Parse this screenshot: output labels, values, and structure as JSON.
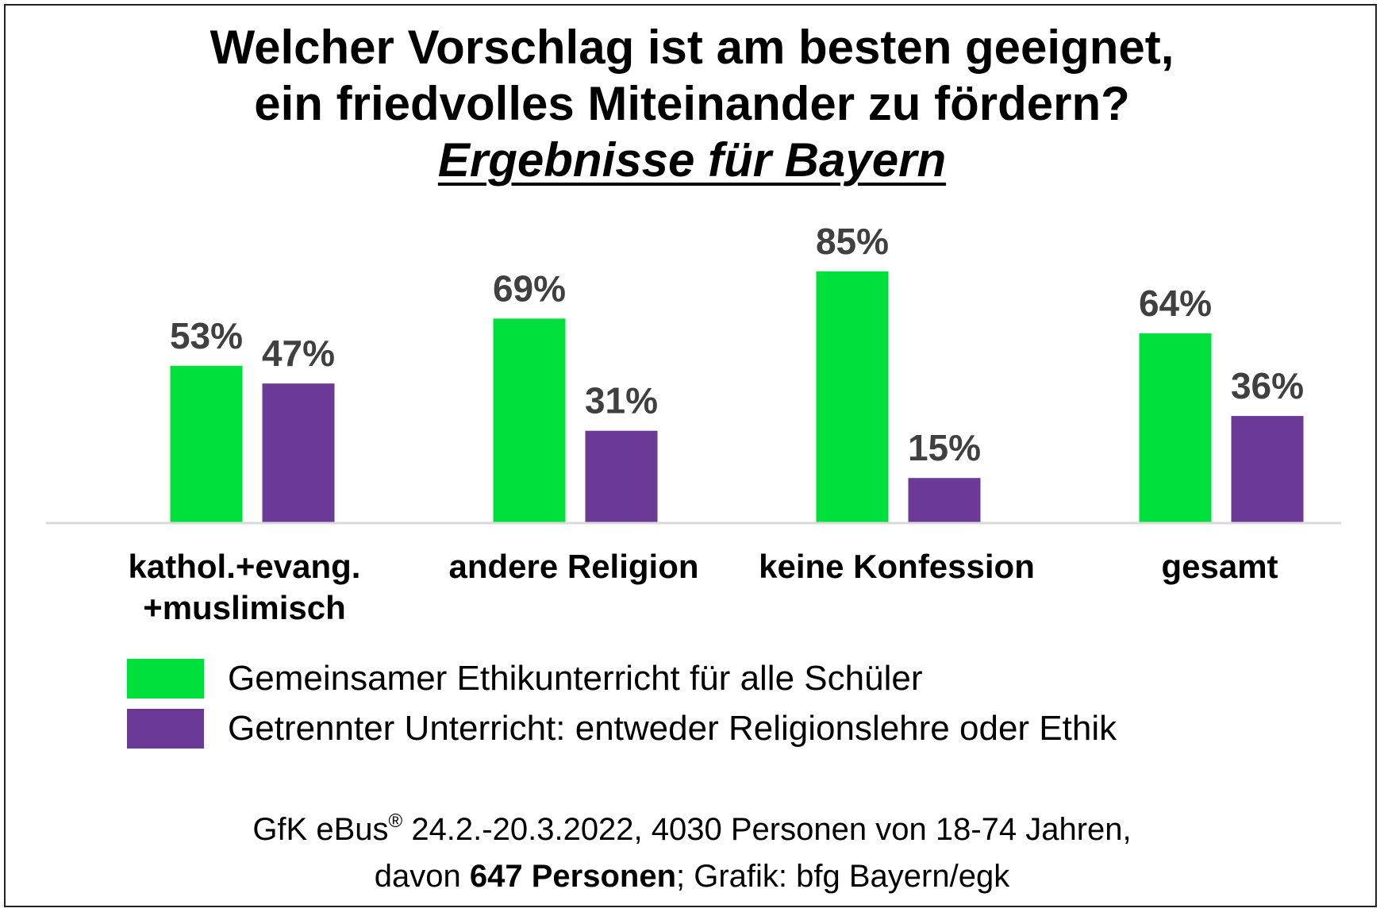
{
  "title": {
    "line1": "Welcher Vorschlag ist am besten geeignet,",
    "line2": "ein friedvolles Miteinander zu fördern?",
    "subtitle": "Ergebnisse für Bayern"
  },
  "colors": {
    "series1": "#00e03c",
    "series2": "#6b3a96",
    "value_label": "#404040",
    "baseline": "#d9d9d9"
  },
  "chart_data": {
    "type": "bar",
    "categories": [
      "kathol.+evang. +muslimisch",
      "andere Religion",
      "keine Konfession",
      "gesamt"
    ],
    "category_lines": [
      [
        "kathol.+evang.",
        "+muslimisch"
      ],
      [
        "andere Religion"
      ],
      [
        "keine Konfession"
      ],
      [
        "gesamt"
      ]
    ],
    "series": [
      {
        "name": "Gemeinsamer Ethikunterricht  für alle Schüler",
        "values": [
          53,
          69,
          85,
          64
        ],
        "labels": [
          "53%",
          "69%",
          "85%",
          "64%"
        ]
      },
      {
        "name": "Getrennter Unterricht: entweder Religionslehre oder Ethik",
        "values": [
          47,
          31,
          15,
          36
        ],
        "labels": [
          "47%",
          "31%",
          "15%",
          "36%"
        ]
      }
    ],
    "ylim": [
      0,
      100
    ],
    "grid": false,
    "legend_position": "bottom"
  },
  "source": {
    "line1_a": "GfK eBus",
    "line1_sup": "®",
    "line1_b": " 24.2.-20.3.2022, 4030 Personen von 18-74 Jahren,",
    "line2_a": "davon ",
    "line2_bold": "647 Personen",
    "line2_b": "; Grafik: bfg Bayern/egk"
  }
}
